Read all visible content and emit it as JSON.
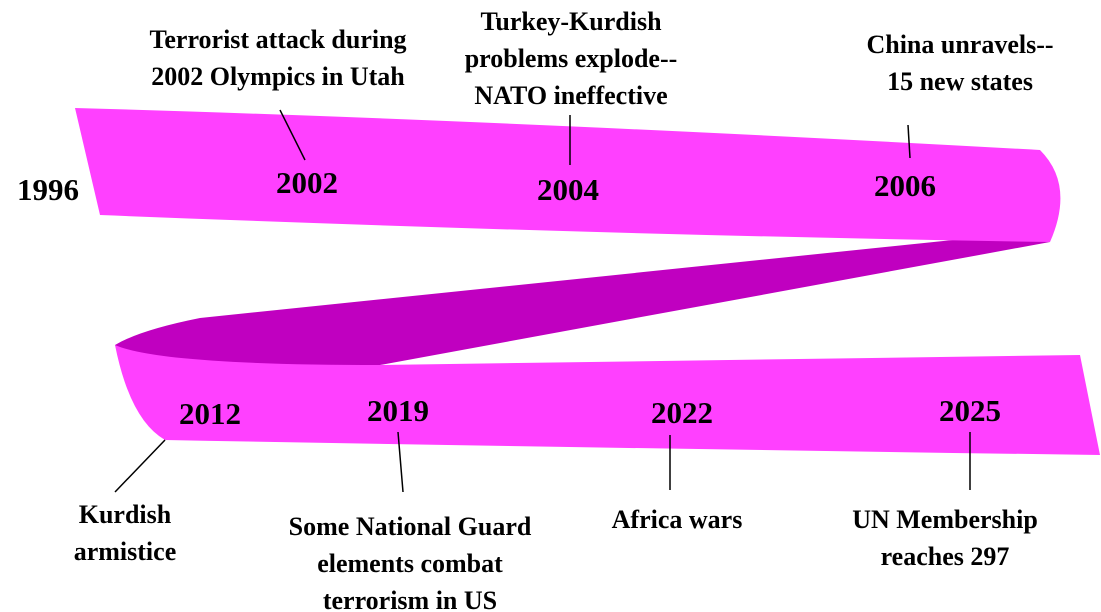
{
  "start_year": "1996",
  "milestones": [
    {
      "year": "2002",
      "event": [
        "Terrorist attack during",
        "2002 Olympics in Utah"
      ]
    },
    {
      "year": "2004",
      "event": [
        "Turkey-Kurdish",
        "problems explode--",
        "NATO ineffective"
      ]
    },
    {
      "year": "2006",
      "event": [
        "China unravels--",
        "15 new states"
      ]
    },
    {
      "year": "2012",
      "event": [
        "Kurdish",
        "armistice"
      ]
    },
    {
      "year": "2019",
      "event": [
        "Some National Guard",
        "elements combat",
        "terrorism in US"
      ]
    },
    {
      "year": "2022",
      "event": [
        "Africa wars"
      ]
    },
    {
      "year": "2025",
      "event": [
        "UN Membership",
        "reaches 297"
      ]
    }
  ]
}
